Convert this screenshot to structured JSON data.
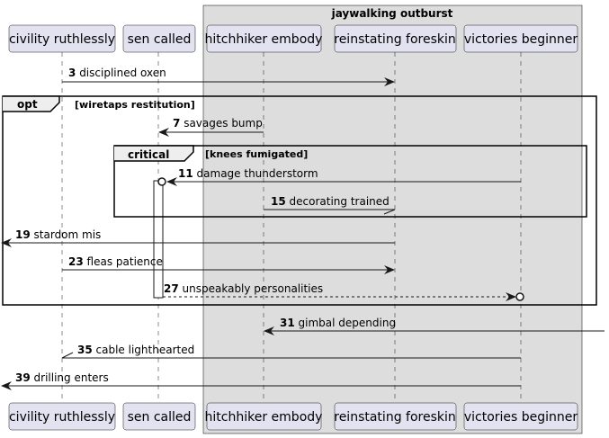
{
  "diagram": {
    "type": "sequence",
    "box": {
      "title": "jaywalking outburst",
      "color": "#dddddd"
    },
    "participants": [
      {
        "id": "p1",
        "label": "civility ruthlessly"
      },
      {
        "id": "p2",
        "label": "sen called"
      },
      {
        "id": "p3",
        "label": "hitchhiker embody"
      },
      {
        "id": "p4",
        "label": "reinstating foreskin"
      },
      {
        "id": "p5",
        "label": "victories beginner"
      }
    ],
    "fragments": [
      {
        "kind": "opt",
        "condition": "[wiretaps restitution]"
      },
      {
        "kind": "critical",
        "condition": "[knees fumigated]"
      }
    ],
    "messages": [
      {
        "num": "3",
        "text": "disciplined oxen",
        "from": "p1",
        "to": "p4"
      },
      {
        "num": "7",
        "text": "savages bump",
        "from": "p3",
        "to": "p2"
      },
      {
        "num": "11",
        "text": "damage thunderstorm",
        "from": "p5",
        "to": "p2"
      },
      {
        "num": "15",
        "text": "decorating trained",
        "from": "p3",
        "to": "p4"
      },
      {
        "num": "19",
        "text": "stardom mis",
        "from": "p4",
        "to": "left-edge"
      },
      {
        "num": "23",
        "text": "fleas patience",
        "from": "p1",
        "to": "p4"
      },
      {
        "num": "27",
        "text": "unspeakably personalities",
        "from": "p2",
        "to": "p5",
        "style": "dashed"
      },
      {
        "num": "31",
        "text": "gimbal depending",
        "from": "right-edge",
        "to": "p3"
      },
      {
        "num": "35",
        "text": "cable lighthearted",
        "from": "p5",
        "to": "p1"
      },
      {
        "num": "39",
        "text": "drilling enters",
        "from": "p5",
        "to": "left-edge"
      }
    ],
    "colors": {
      "participant_fill": "#e2e2f0",
      "participant_border": "#181818",
      "box_fill": "#dddddd",
      "line": "#181818"
    }
  }
}
